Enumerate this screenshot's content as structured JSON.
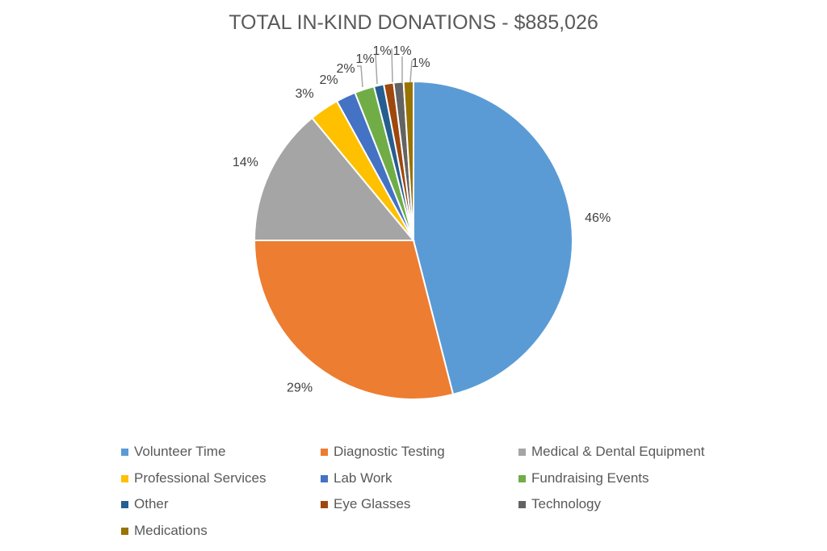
{
  "chart_data": {
    "type": "pie",
    "title": "TOTAL IN-KIND DONATIONS - $885,026",
    "categories": [
      "Volunteer Time",
      "Diagnostic Testing",
      "Medical & Dental Equipment",
      "Professional Services",
      "Lab Work",
      "Fundraising Events",
      "Other",
      "Eye Glasses",
      "Technology",
      "Medications"
    ],
    "values": [
      46,
      29,
      14,
      3,
      2,
      2,
      1,
      1,
      1,
      1
    ],
    "labels": [
      "46%",
      "29%",
      "14%",
      "3%",
      "2%",
      "2%",
      "1%",
      "1%",
      "1%",
      "1%"
    ],
    "colors": [
      "#5B9BD5",
      "#ED7D31",
      "#A5A5A5",
      "#FFC000",
      "#4472C4",
      "#70AD47",
      "#255E91",
      "#9E480E",
      "#636363",
      "#997300"
    ],
    "legend_position": "bottom"
  }
}
